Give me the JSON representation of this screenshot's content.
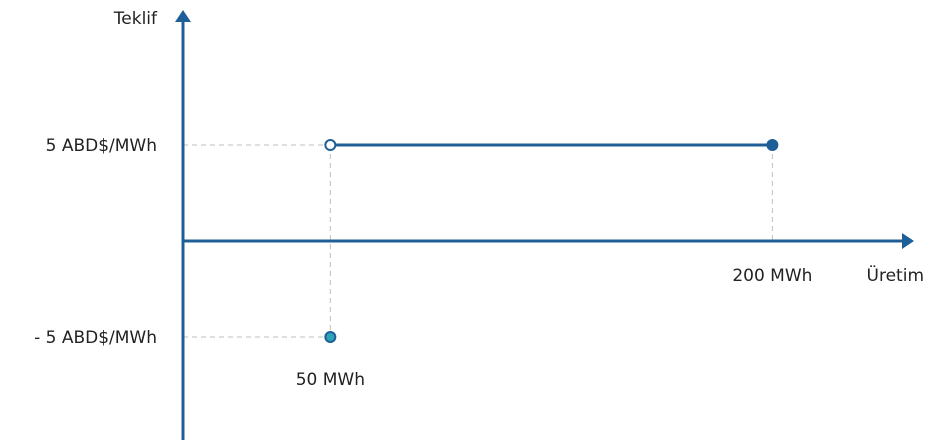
{
  "colors": {
    "axis": "#1f5f97",
    "line": "#1f5f97",
    "negative_point_fill": "#2ea3b8",
    "negative_point_stroke": "#1f5f97",
    "guide": "#bfbfbf",
    "text": "#222222"
  },
  "chart_data": {
    "type": "line",
    "title": "",
    "xlabel": "Üretim",
    "ylabel": "Teklif",
    "xlim": [
      0,
      245
    ],
    "ylim": [
      -8.8,
      11.2
    ],
    "x_tick_labels": [
      {
        "x": 50,
        "label": "50 MWh"
      },
      {
        "x": 200,
        "label": "200 MWh"
      }
    ],
    "y_tick_labels": [
      {
        "y": 5,
        "label": "5 ABD$/MWh"
      },
      {
        "y": -5,
        "label": "- 5 ABD$/MWh"
      }
    ],
    "series": [
      {
        "segments": [
          {
            "x": [
              0,
              50
            ],
            "y": [
              -5,
              -5
            ],
            "visible": false
          },
          {
            "x": [
              50,
              200
            ],
            "y": [
              5,
              5
            ],
            "visible": true
          }
        ],
        "points": [
          {
            "x": 50,
            "y": -5,
            "style": "filled"
          },
          {
            "x": 50,
            "y": 5,
            "style": "open"
          },
          {
            "x": 200,
            "y": 5,
            "style": "filled"
          }
        ]
      }
    ]
  }
}
